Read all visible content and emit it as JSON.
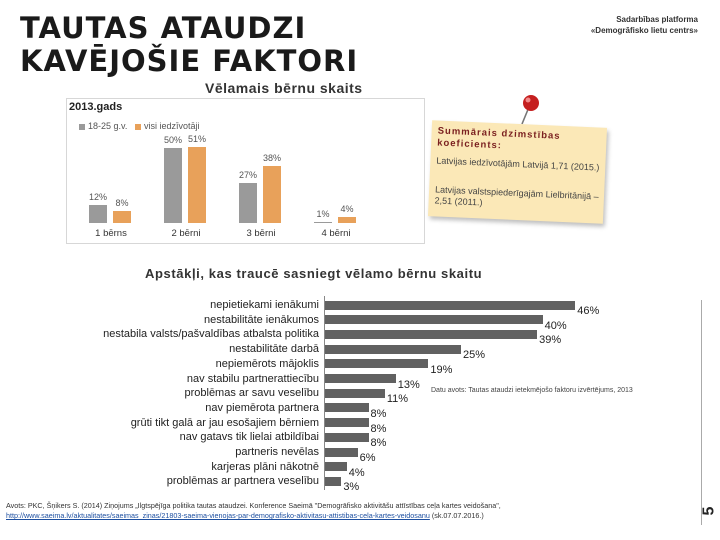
{
  "header": {
    "title_line1": "TAUTAS ATAUDZI",
    "title_line2": "KAVĒJOŠIE FAKTORI",
    "subtitle": "Vēlamais bērnu skaits",
    "org_line1": "Sadarbības platforma",
    "org_line2": "«Demogrāfisko lietu centrs»"
  },
  "sticky_note": {
    "heading": "Summārais dzimstības koeficients:",
    "line1": "Latvijas iedzīvotājām Latvijā 1,71 (2015.)",
    "line2": "Latvijas valstspiederīgajām Lielbritānijā – 2,51 (2011.)"
  },
  "colors": {
    "group1": "#9a9a9a",
    "group2": "#e8a15a",
    "hbar": "#616161",
    "note_bg": "#fbe8b7"
  },
  "chart_data": [
    {
      "type": "bar",
      "title": "2013.gads",
      "categories": [
        "1 bērns",
        "2 bērni",
        "3 bērni",
        "4 bērni"
      ],
      "series": [
        {
          "name": "18-25 g.v.",
          "values": [
            12,
            50,
            27,
            1
          ]
        },
        {
          "name": "visi iedzīvotāji",
          "values": [
            8,
            51,
            38,
            4
          ]
        }
      ],
      "value_labels": [
        [
          "12%",
          "50%",
          "27%",
          "1%"
        ],
        [
          "8%",
          "51%",
          "38%",
          "4%"
        ]
      ],
      "ylim": [
        0,
        60
      ],
      "legend": "top-left"
    },
    {
      "type": "bar",
      "orientation": "horizontal",
      "title": "Apstākļi, kas traucē sasniegt vēlamo bērnu skaitu",
      "categories": [
        "nepietiekami ienākumi",
        "nestabilitāte ienākumos",
        "nestabila valsts/pašvaldības atbalsta politika",
        "nestabilitāte darbā",
        "nepiemērots mājoklis",
        "nav stabilu partnerattiecību",
        "problēmas ar savu veselību",
        "nav piemērota partnera",
        "grūti tikt galā ar jau esošajiem bērniem",
        "nav gatavs tik lielai atbildībai",
        "partneris nevēlas",
        "karjeras plāni nākotnē",
        "problēmas ar partnera veselību"
      ],
      "values": [
        46,
        40,
        39,
        25,
        19,
        13,
        11,
        8,
        8,
        8,
        6,
        4,
        3
      ],
      "value_labels": [
        "46%",
        "40%",
        "39%",
        "25%",
        "19%",
        "13%",
        "11%",
        "8%",
        "8%",
        "8%",
        "6%",
        "4%",
        "3%"
      ],
      "xlim": [
        0,
        50
      ],
      "data_source": "Datu avots: Tautas ataudzi ietekmējošo faktoru izvērtējums, 2013"
    }
  ],
  "footer": {
    "source_text": "Avots: PKC, Šņikers S. (2014) Ziņojums „Ilgtspējīga politika tautas ataudzei. Konference Saeimā \"Demogrāfisko aktivitāšu attīstības ceļa kartes veidošana\", ",
    "source_link": "http://www.saeima.lv/aktualitates/saeimas_zinas/21803-saeima-vienojas-par-demografisko-aktivitasu-attistibas-cela-kartes-veidosanu",
    "source_date": " (sk.07.07.2016.)",
    "page_number": "5"
  }
}
